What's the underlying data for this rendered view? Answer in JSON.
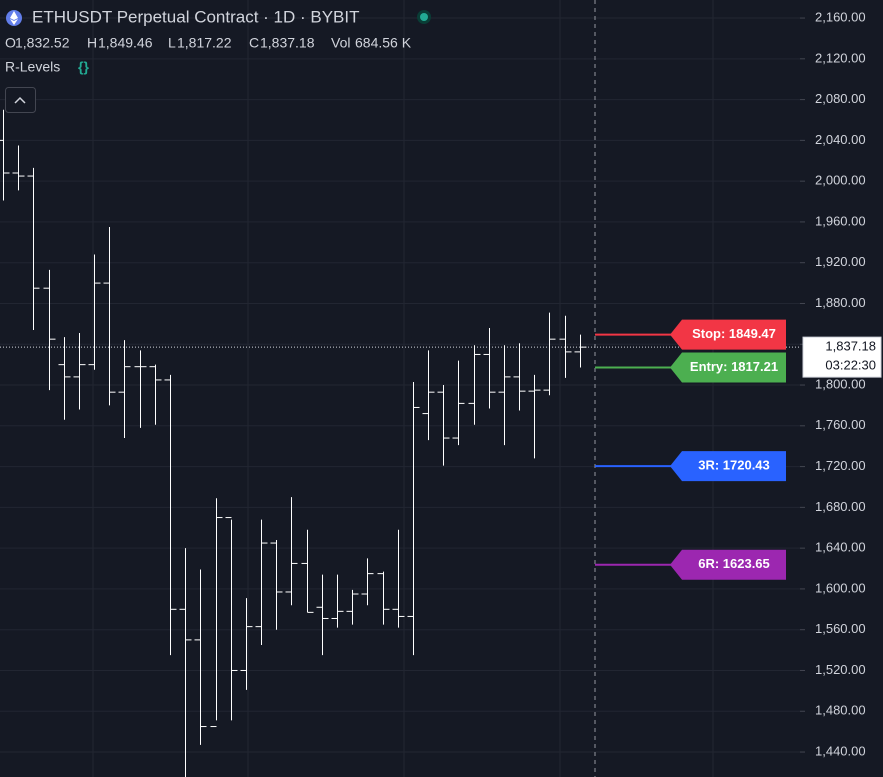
{
  "header": {
    "title": "ETHUSDT Perpetual Contract · 1D · BYBIT",
    "ohlc": [
      {
        "key": "O",
        "value": "1,832.52"
      },
      {
        "key": "H",
        "value": "1,849.46"
      },
      {
        "key": "L",
        "value": "1,817.22"
      },
      {
        "key": "C",
        "value": "1,837.18"
      },
      {
        "key": "Vol",
        "value": "684.56 K"
      }
    ],
    "indicator": "R-Levels",
    "indicator_icon": "{}"
  },
  "chart_data": {
    "type": "ohlc",
    "color": "#ffffff",
    "open": [
      2040,
      2008,
      2005,
      1895,
      1820,
      1808,
      1820,
      1900,
      1793,
      1818,
      1818,
      1805,
      1580,
      1550,
      1465,
      1670,
      1520,
      1563,
      1645,
      1597,
      1625,
      1582,
      1571,
      1578,
      1595,
      1615,
      1580,
      1573,
      1772,
      1793,
      1748,
      1782,
      1830,
      1793,
      1808,
      1794,
      1795,
      1845,
      1832.52
    ],
    "high": [
      2070,
      2035,
      2013,
      1913,
      1847,
      1851,
      1928,
      1955,
      1844,
      1834,
      1820,
      1810,
      1640,
      1619,
      1689,
      1668,
      1591,
      1668,
      1648,
      1690,
      1658,
      1614,
      1614,
      1599,
      1630,
      1617,
      1658,
      1803,
      1834,
      1800,
      1824,
      1839,
      1856,
      1839,
      1841,
      1810,
      1871,
      1868,
      1849.46
    ],
    "low": [
      1981,
      1991,
      1854,
      1795,
      1766,
      1776,
      1815,
      1780,
      1748,
      1758,
      1761,
      1535,
      1415.5,
      1447,
      1471,
      1471,
      1501,
      1545,
      1560,
      1584,
      1577,
      1535,
      1562,
      1565,
      1584,
      1565,
      1562,
      1535,
      1746,
      1721,
      1741,
      1761,
      1777,
      1741,
      1775,
      1728,
      1790,
      1807,
      1817.22
    ],
    "close": [
      2008,
      2005,
      1895,
      1845,
      1808,
      1820,
      1900,
      1793,
      1818,
      1818,
      1805,
      1580,
      1550,
      1465,
      1670,
      1520,
      1563,
      1645,
      1597,
      1625,
      1577,
      1571,
      1578,
      1595,
      1615,
      1580,
      1573,
      1778,
      1793,
      1748,
      1782,
      1830,
      1793,
      1808,
      1794,
      1795,
      1845,
      1832.52,
      1837.18
    ],
    "ylim": [
      1415.5,
      2177.7
    ],
    "yticks": [
      {
        "value": 1440,
        "label": "1,440.00"
      },
      {
        "value": 1480,
        "label": "1,480.00"
      },
      {
        "value": 1520,
        "label": "1,520.00"
      },
      {
        "value": 1560,
        "label": "1,560.00"
      },
      {
        "value": 1600,
        "label": "1,600.00"
      },
      {
        "value": 1640,
        "label": "1,640.00"
      },
      {
        "value": 1680,
        "label": "1,680.00"
      },
      {
        "value": 1720,
        "label": "1,720.00"
      },
      {
        "value": 1760,
        "label": "1,760.00"
      },
      {
        "value": 1800,
        "label": "1,800.00"
      },
      {
        "value": 1840,
        "label": "1,840.00"
      },
      {
        "value": 1880,
        "label": "1,880.00"
      },
      {
        "value": 1920,
        "label": "1,920.00"
      },
      {
        "value": 1960,
        "label": "1,960.00"
      },
      {
        "value": 2000,
        "label": "2,000.00"
      },
      {
        "value": 2040,
        "label": "2,040.00"
      },
      {
        "value": 2080,
        "label": "2,080.00"
      },
      {
        "value": 2120,
        "label": "2,120.00"
      },
      {
        "value": 2160,
        "label": "2,160.00"
      }
    ],
    "grid": true,
    "last_price": {
      "value": 1837.18,
      "label": "1,837.18",
      "countdown": "03:22:30"
    },
    "levels": [
      {
        "value": 1849.47,
        "label": "Stop: 1849.47",
        "color": "#f23645"
      },
      {
        "value": 1817.21,
        "label": "Entry: 1817.21",
        "color": "#4caf50"
      },
      {
        "value": 1720.43,
        "label": "3R: 1720.43",
        "color": "#2962ff"
      },
      {
        "value": 1623.65,
        "label": "6R: 1623.65",
        "color": "#9c27b0"
      }
    ]
  }
}
